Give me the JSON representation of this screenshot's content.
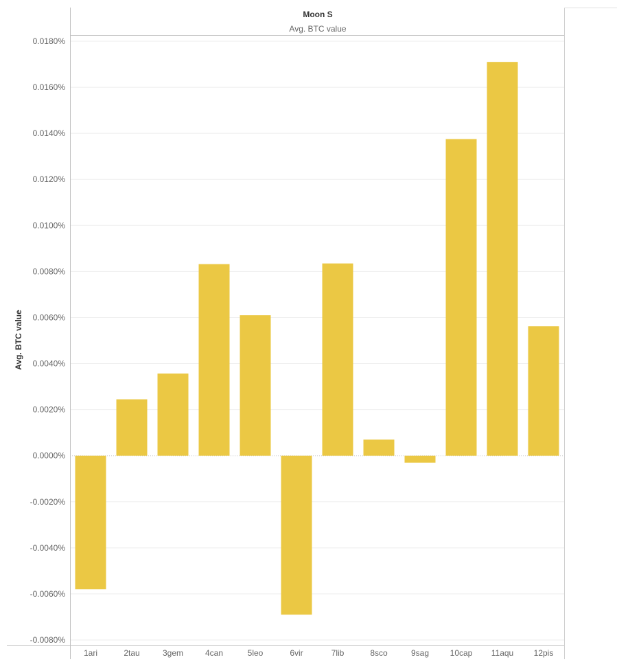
{
  "chart_data": {
    "type": "bar",
    "title": "Moon S",
    "subtitle": "Avg. BTC value",
    "ylabel": "Avg. BTC value",
    "xlabel": "",
    "categories": [
      "1ari",
      "2tau",
      "3gem",
      "4can",
      "5leo",
      "6vir",
      "7lib",
      "8sco",
      "9sag",
      "10cap",
      "11aqu",
      "12pis"
    ],
    "values": [
      -0.0058,
      0.00245,
      0.00357,
      0.00832,
      0.0061,
      -0.0069,
      0.00835,
      0.0007,
      -0.0003,
      0.01375,
      0.0171,
      0.00562
    ],
    "ylim": [
      -0.008,
      0.018
    ],
    "yticks": [
      -0.008,
      -0.006,
      -0.004,
      -0.002,
      0,
      0.002,
      0.004,
      0.006,
      0.008,
      0.01,
      0.012,
      0.014,
      0.016,
      0.018
    ],
    "ytick_labels": [
      "-0.0080%",
      "-0.0060%",
      "-0.0040%",
      "-0.0020%",
      "0.0000%",
      "0.0020%",
      "0.0040%",
      "0.0060%",
      "0.0080%",
      "0.0100%",
      "0.0120%",
      "0.0140%",
      "0.0160%",
      "0.0180%"
    ],
    "grid": true,
    "legend": "none",
    "bar_color": "#EBC844"
  }
}
